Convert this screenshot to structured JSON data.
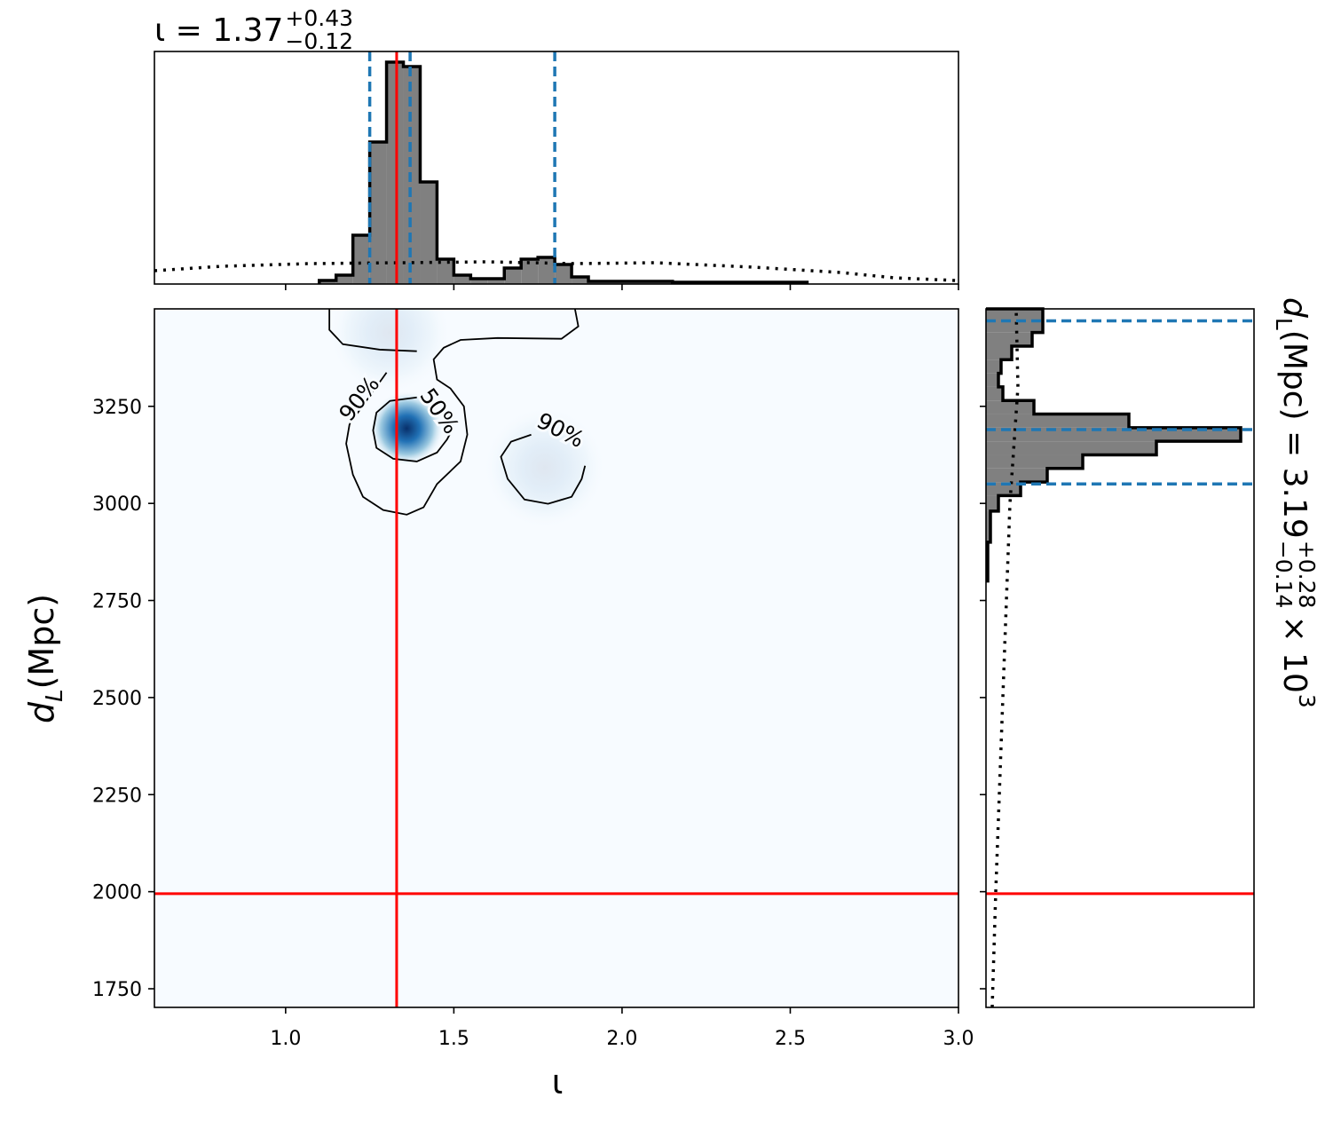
{
  "chart_data": {
    "type": "corner",
    "title": {
      "text": "ι = 1.37",
      "upper": "+0.43",
      "lower": "−0.12"
    },
    "right_title": {
      "prefix": "d",
      "sub": "L",
      "text": " (Mpc) = 3.19",
      "upper": "+0.28",
      "lower": "−0.14",
      "suffix": "× 10",
      "exp": "3"
    },
    "xlabel": "ι",
    "ylabel": {
      "main": "d",
      "sub": "L",
      "unit": " (Mpc)"
    },
    "xlim": [
      0.61,
      3.0
    ],
    "ylim": [
      1702,
      3501
    ],
    "xticks": [
      {
        "value": 1,
        "label": "1.0"
      },
      {
        "value": 1.5,
        "label": "1.5"
      },
      {
        "value": 2,
        "label": "2.0"
      },
      {
        "value": 2.5,
        "label": "2.5"
      },
      {
        "value": 3,
        "label": "3.0"
      }
    ],
    "yticks": [
      1750,
      2000,
      2250,
      2500,
      2750,
      3000,
      3250
    ],
    "truth": {
      "x": 1.33,
      "y": 1995,
      "color": "#ff0000"
    },
    "quantile_color": "#1f77b4",
    "hist_color": "#808080",
    "x_hist": {
      "bins": [
        1.1,
        1.15,
        1.2,
        1.25,
        1.3,
        1.35,
        1.4,
        1.45,
        1.5,
        1.55,
        1.6,
        1.65,
        1.7,
        1.75,
        1.8,
        1.85,
        1.9,
        2.15,
        2.55
      ],
      "counts": [
        4,
        10,
        55,
        160,
        250,
        245,
        115,
        28,
        10,
        6,
        6,
        18,
        28,
        30,
        22,
        8,
        3,
        2
      ],
      "ylim": [
        0,
        262
      ],
      "quantiles": [
        1.25,
        1.37,
        1.8
      ],
      "prior": {
        "x": [
          0.61,
          0.81,
          1.07,
          1.34,
          1.6,
          1.86,
          2.1,
          2.39,
          2.65,
          2.81,
          2.99
        ],
        "values": [
          15,
          20,
          23,
          24,
          25,
          23,
          24,
          19,
          13,
          7,
          4
        ]
      }
    },
    "y_hist": {
      "bins": [
        2800,
        2900,
        2980,
        3020,
        3055,
        3090,
        3125,
        3160,
        3195,
        3230,
        3265,
        3300,
        3335,
        3370,
        3405,
        3440,
        3501
      ],
      "counts": [
        2,
        5,
        14,
        39,
        69,
        109,
        192,
        287,
        161,
        54,
        19,
        14,
        17,
        29,
        52,
        64
      ],
      "xlim": [
        0,
        302
      ],
      "quantiles": [
        3050,
        3190,
        3470
      ],
      "prior": {
        "y": [
          1702,
          2000,
          2500,
          3000,
          3300,
          3501
        ],
        "values": [
          7,
          11,
          19,
          27,
          36,
          34
        ]
      }
    },
    "density": {
      "peaks": [
        {
          "x": 1.36,
          "y": 3193,
          "weight": 1
        },
        {
          "x": 1.31,
          "y": 3440,
          "weight": 0.1
        },
        {
          "x": 1.77,
          "y": 3092,
          "weight": 0.1
        }
      ]
    },
    "contours": [
      {
        "x": [
          1.19,
          1.18,
          1.2,
          1.23,
          1.29,
          1.36,
          1.41,
          1.45,
          1.52,
          1.54,
          1.53,
          1.49,
          1.45,
          1.44,
          1.47,
          1.52,
          1.63,
          1.82,
          1.87,
          1.86
        ],
        "y": [
          3204,
          3154,
          3074,
          3017,
          2983,
          2971,
          2990,
          3050,
          3108,
          3177,
          3250,
          3296,
          3319,
          3371,
          3401,
          3421,
          3426,
          3424,
          3456,
          3501
        ]
      },
      {
        "x": [
          1.13,
          1.13,
          1.17,
          1.28,
          1.39
        ],
        "y": [
          3501,
          3447,
          3410,
          3396,
          3392
        ]
      },
      {
        "label": "90%",
        "x": [
          1.19,
          1.3
        ],
        "y": [
          3204,
          3337
        ]
      },
      {
        "label": "90%",
        "x": [
          1.73,
          1.67,
          1.64,
          1.66,
          1.71,
          1.78,
          1.85,
          1.88,
          1.89
        ],
        "y": [
          3177,
          3159,
          3120,
          3063,
          3010,
          2999,
          3017,
          3063,
          3097
        ]
      },
      {
        "label": "50%",
        "x": [
          1.39,
          1.31,
          1.27,
          1.26,
          1.27,
          1.32,
          1.39,
          1.45,
          1.48,
          1.49
        ],
        "y": [
          3273,
          3264,
          3234,
          3188,
          3143,
          3115,
          3108,
          3131,
          3165,
          3181
        ]
      }
    ]
  }
}
